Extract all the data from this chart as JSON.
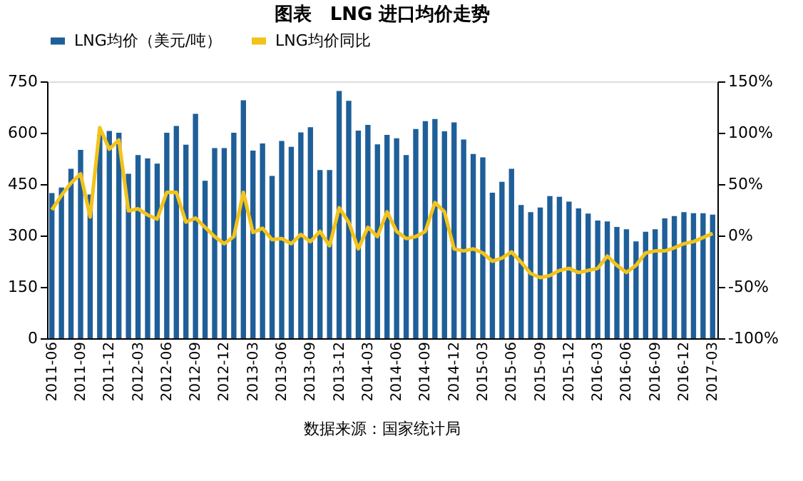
{
  "chart_data": {
    "type": "bar",
    "title": "图表　LNG 进口均价走势",
    "categories": [
      "2011-06",
      null,
      null,
      "2011-09",
      null,
      null,
      "2011-12",
      null,
      null,
      "2012-03",
      null,
      null,
      "2012-06",
      null,
      null,
      "2012-09",
      null,
      null,
      "2012-12",
      null,
      null,
      "2013-03",
      null,
      null,
      "2013-06",
      null,
      null,
      "2013-09",
      null,
      null,
      "2013-12",
      null,
      null,
      "2014-03",
      null,
      null,
      "2014-06",
      null,
      null,
      "2014-09",
      null,
      null,
      "2014-12",
      null,
      null,
      "2015-03",
      null,
      null,
      "2015-06",
      null,
      null,
      "2015-09",
      null,
      null,
      "2015-12",
      null,
      null,
      "2016-03",
      null,
      null,
      "2016-06",
      null,
      null,
      "2016-09",
      null,
      null,
      "2016-12",
      null,
      null,
      "2017-03"
    ],
    "series": [
      {
        "name": "LNG均价（美元/吨）",
        "color": "#1f5f99",
        "values": [
          424,
          440,
          495,
          550,
          420,
          595,
          605,
          600,
          480,
          535,
          525,
          510,
          600,
          620,
          565,
          655,
          460,
          555,
          555,
          600,
          695,
          548,
          569,
          474,
          576,
          559,
          601,
          616,
          491,
          491,
          722,
          693,
          606,
          623,
          566,
          594,
          584,
          535,
          611,
          634,
          640,
          604,
          630,
          580,
          538,
          528,
          425,
          457,
          495,
          389,
          368,
          382,
          415,
          413,
          399,
          379,
          364,
          344,
          341,
          325,
          318,
          283,
          311,
          318,
          350,
          357,
          368,
          365,
          365,
          361
        ]
      },
      {
        "name": "LNG均价同比",
        "type": "line",
        "axis": "y2",
        "color": "#f2c31b",
        "values": [
          25,
          39,
          51,
          60,
          18,
          105,
          84,
          93,
          24,
          26,
          20,
          16,
          42,
          42,
          13,
          17,
          8,
          -1,
          -8,
          -1,
          42,
          3,
          7,
          -4,
          -3,
          -8,
          1,
          -6,
          4,
          -10,
          27,
          13,
          -13,
          8,
          -1,
          23,
          4,
          -3,
          -1,
          4,
          32,
          23,
          -13,
          -15,
          -13,
          -17,
          -25,
          -22,
          -16,
          -26,
          -37,
          -41,
          -39,
          -34,
          -32,
          -36,
          -34,
          -32,
          -20,
          -29,
          -36,
          -29,
          -17,
          -15,
          -15,
          -12,
          -8,
          -6,
          -2,
          2
        ]
      }
    ],
    "ylim": [
      0,
      750
    ],
    "yticks": [
      0,
      150,
      300,
      450,
      600,
      750
    ],
    "y2lim": [
      -100,
      150
    ],
    "y2ticks": [
      {
        "value": -100,
        "label": "-100%"
      },
      {
        "value": -50,
        "label": "-50%"
      },
      {
        "value": 0,
        "label": "0%"
      },
      {
        "value": 50,
        "label": "50%"
      },
      {
        "value": 100,
        "label": "100%"
      },
      {
        "value": 150,
        "label": "150%"
      }
    ],
    "legend": "top",
    "grid": false,
    "annotations": [
      "数据来源：国家统计局"
    ]
  }
}
